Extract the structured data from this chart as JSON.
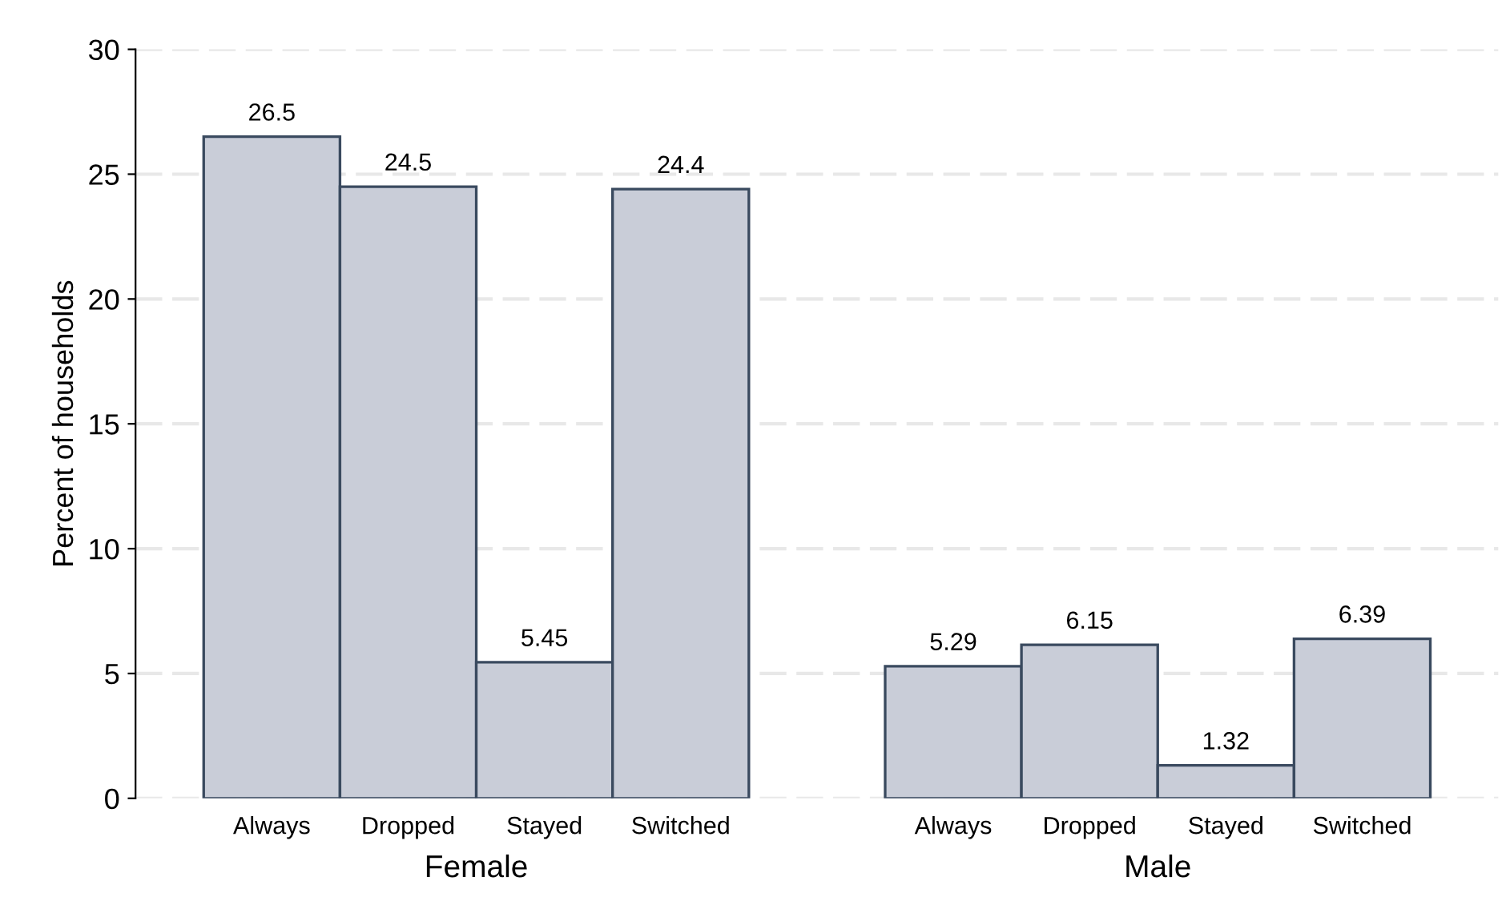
{
  "chart_data": {
    "type": "bar",
    "ylabel": "Percent of households",
    "categories": [
      "Always",
      "Dropped",
      "Stayed",
      "Switched",
      null,
      "Always",
      "Dropped",
      "Stayed",
      "Switched"
    ],
    "values": [
      26.5,
      24.5,
      5.45,
      24.4,
      null,
      5.29,
      6.15,
      1.32,
      6.39
    ],
    "color": "#c9cdd8",
    "data_labels": true,
    "ylim": [
      0,
      30
    ],
    "yticks": [
      0,
      5,
      10,
      15,
      20,
      25,
      30
    ],
    "grid": "y",
    "annotations": [
      "Female",
      "Male"
    ]
  }
}
